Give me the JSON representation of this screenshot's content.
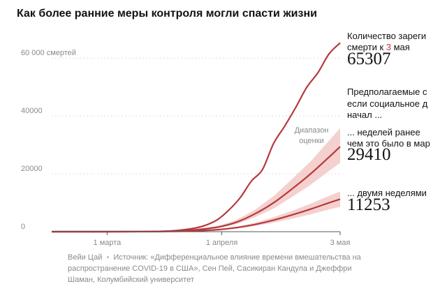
{
  "title": "Как более ранние меры контроля могли спасти жизни",
  "chart_data": {
    "type": "line",
    "x_start": "2020-02-15",
    "x_end": "2020-05-03",
    "xlim": [
      "2020-02-15",
      "2020-05-03"
    ],
    "ylim": [
      0,
      70000
    ],
    "y_ticks": [
      {
        "value": 0,
        "label": "0"
      },
      {
        "value": 20000,
        "label": "20000"
      },
      {
        "value": 40000,
        "label": "40000"
      },
      {
        "value": 60000,
        "label": "60 000 смертей"
      }
    ],
    "x_ticks": [
      {
        "date": "2020-03-01",
        "label": "1 марта"
      },
      {
        "date": "2020-04-01",
        "label": "1 апреля"
      },
      {
        "date": "2020-05-03",
        "label": "3 мая"
      }
    ],
    "series": [
      {
        "color": "#b5393e",
        "points": [
          [
            "2020-02-15",
            0
          ],
          [
            "2020-03-01",
            1
          ],
          [
            "2020-03-10",
            25
          ],
          [
            "2020-03-15",
            100
          ],
          [
            "2020-03-20",
            420
          ],
          [
            "2020-03-25",
            1300
          ],
          [
            "2020-03-28",
            2400
          ],
          [
            "2020-03-31",
            4300
          ],
          [
            "2020-04-03",
            7600
          ],
          [
            "2020-04-06",
            11800
          ],
          [
            "2020-04-09",
            17500
          ],
          [
            "2020-04-12",
            21500
          ],
          [
            "2020-04-15",
            30500
          ],
          [
            "2020-04-18",
            36500
          ],
          [
            "2020-04-21",
            43000
          ],
          [
            "2020-04-24",
            50000
          ],
          [
            "2020-04-27",
            55000
          ],
          [
            "2020-04-30",
            61500
          ],
          [
            "2020-05-03",
            65307
          ]
        ]
      },
      {
        "color": "#b5393e",
        "points": [
          [
            "2020-02-15",
            0
          ],
          [
            "2020-03-10",
            15
          ],
          [
            "2020-03-15",
            80
          ],
          [
            "2020-03-20",
            260
          ],
          [
            "2020-03-25",
            650
          ],
          [
            "2020-03-31",
            1600
          ],
          [
            "2020-04-05",
            3300
          ],
          [
            "2020-04-10",
            6200
          ],
          [
            "2020-04-15",
            10000
          ],
          [
            "2020-04-20",
            14800
          ],
          [
            "2020-04-25",
            20000
          ],
          [
            "2020-04-30",
            25800
          ],
          [
            "2020-05-03",
            29410
          ]
        ],
        "band_low": [
          [
            "2020-02-15",
            0
          ],
          [
            "2020-03-10",
            10
          ],
          [
            "2020-03-15",
            60
          ],
          [
            "2020-03-20",
            200
          ],
          [
            "2020-03-25",
            500
          ],
          [
            "2020-03-31",
            1250
          ],
          [
            "2020-04-05",
            2600
          ],
          [
            "2020-04-10",
            5000
          ],
          [
            "2020-04-15",
            8000
          ],
          [
            "2020-04-20",
            12000
          ],
          [
            "2020-04-25",
            16200
          ],
          [
            "2020-04-30",
            21000
          ],
          [
            "2020-05-03",
            23800
          ]
        ],
        "band_high": [
          [
            "2020-02-15",
            0
          ],
          [
            "2020-03-10",
            20
          ],
          [
            "2020-03-15",
            100
          ],
          [
            "2020-03-20",
            320
          ],
          [
            "2020-03-25",
            800
          ],
          [
            "2020-03-31",
            2000
          ],
          [
            "2020-04-05",
            4100
          ],
          [
            "2020-04-10",
            7600
          ],
          [
            "2020-04-15",
            12300
          ],
          [
            "2020-04-20",
            18200
          ],
          [
            "2020-04-25",
            24300
          ],
          [
            "2020-04-30",
            31500
          ],
          [
            "2020-05-03",
            35800
          ]
        ]
      },
      {
        "color": "#b5393e",
        "points": [
          [
            "2020-02-15",
            0
          ],
          [
            "2020-03-10",
            10
          ],
          [
            "2020-03-15",
            40
          ],
          [
            "2020-03-20",
            120
          ],
          [
            "2020-03-25",
            300
          ],
          [
            "2020-03-31",
            700
          ],
          [
            "2020-04-05",
            1400
          ],
          [
            "2020-04-10",
            2500
          ],
          [
            "2020-04-15",
            4000
          ],
          [
            "2020-04-20",
            5800
          ],
          [
            "2020-04-25",
            7800
          ],
          [
            "2020-04-30",
            10000
          ],
          [
            "2020-05-03",
            11253
          ]
        ],
        "band_low": [
          [
            "2020-02-15",
            0
          ],
          [
            "2020-03-10",
            8
          ],
          [
            "2020-03-15",
            30
          ],
          [
            "2020-03-20",
            90
          ],
          [
            "2020-03-25",
            230
          ],
          [
            "2020-03-31",
            550
          ],
          [
            "2020-04-05",
            1100
          ],
          [
            "2020-04-10",
            1950
          ],
          [
            "2020-04-15",
            3100
          ],
          [
            "2020-04-20",
            4500
          ],
          [
            "2020-04-25",
            6000
          ],
          [
            "2020-04-30",
            7700
          ],
          [
            "2020-05-03",
            8600
          ]
        ],
        "band_high": [
          [
            "2020-02-15",
            0
          ],
          [
            "2020-03-10",
            12
          ],
          [
            "2020-03-15",
            50
          ],
          [
            "2020-03-20",
            150
          ],
          [
            "2020-03-25",
            380
          ],
          [
            "2020-03-31",
            880
          ],
          [
            "2020-04-05",
            1750
          ],
          [
            "2020-04-10",
            3100
          ],
          [
            "2020-04-15",
            5000
          ],
          [
            "2020-04-20",
            7200
          ],
          [
            "2020-04-25",
            9700
          ],
          [
            "2020-04-30",
            12400
          ],
          [
            "2020-05-03",
            13900
          ]
        ]
      }
    ],
    "band_color": "#f2c9c6",
    "axis_color": "#999999"
  },
  "annotations": {
    "actual_line1": "Количество зареги",
    "actual_line2_pre": "смерти к ",
    "actual_line2_hi": "3",
    "actual_line2_post": " мая",
    "actual_value": "65307",
    "projected_line1": "Предполагаемые с",
    "projected_line2": "если социальное д",
    "projected_line3": "начал ...",
    "week_line1": "... неделей ранее",
    "week_line2": "чем это было в мар",
    "week_value": "29410",
    "two_weeks_line1": "... двумя неделями",
    "two_weeks_value": "11253",
    "range_label_line1": "Диапазон",
    "range_label_line2": "оценки"
  },
  "source": {
    "author": "Вейи Цай",
    "text": "Источник: «Дифференциальное влияние времени вмешательства на распространение COVID-19 в США», Сен Пей, Сасикиран Кандула и Джеффри Шаман, Колумбийский университет"
  }
}
